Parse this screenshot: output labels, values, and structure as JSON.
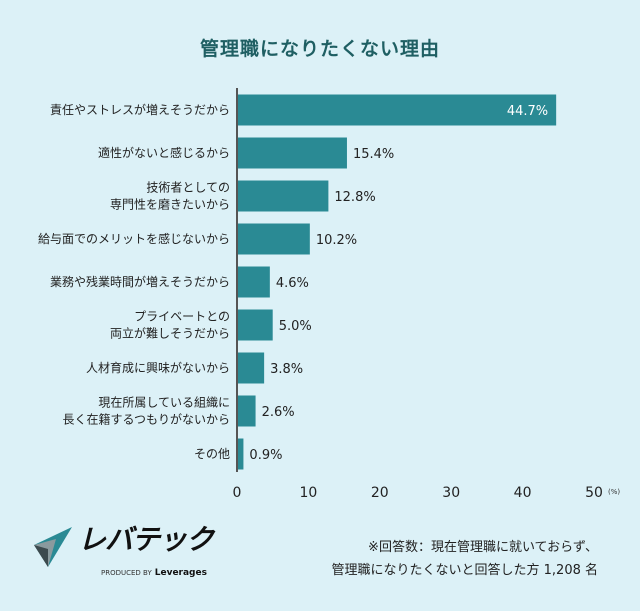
{
  "title": "管理職になりたくない理由",
  "chart_data": {
    "type": "bar",
    "orientation": "horizontal",
    "title": "管理職になりたくない理由",
    "categories": [
      [
        "責任やストレスが増えそうだから"
      ],
      [
        "適性がないと感じるから"
      ],
      [
        "技術者としての",
        "専門性を磨きたいから"
      ],
      [
        "給与面でのメリットを感じないから"
      ],
      [
        "業務や残業時間が増えそうだから"
      ],
      [
        "プライベートとの",
        "両立が難しそうだから"
      ],
      [
        "人材育成に興味がないから"
      ],
      [
        "現在所属している組織に",
        "長く在籍するつもりがないから"
      ],
      [
        "その他"
      ]
    ],
    "values": [
      44.7,
      15.4,
      12.8,
      10.2,
      4.6,
      5.0,
      3.8,
      2.6,
      0.9
    ],
    "value_labels": [
      "44.7%",
      "15.4%",
      "12.8%",
      "10.2%",
      "4.6%",
      "5.0%",
      "3.8%",
      "2.6%",
      "0.9%"
    ],
    "xlim": [
      0,
      50
    ],
    "xticks": [
      "0",
      "10",
      "20",
      "30",
      "40",
      "50"
    ],
    "xunit": "(%)",
    "grid": false,
    "bar_color": "#2a8a94"
  },
  "footer": {
    "note_line1": "※回答数：現在管理職に就いておらず、",
    "note_line2": "管理職になりたくないと回答した方 1,208 名"
  },
  "logo": {
    "name": "レバテック",
    "produced_by": "PRODUCED BY",
    "company": "Leverages"
  }
}
